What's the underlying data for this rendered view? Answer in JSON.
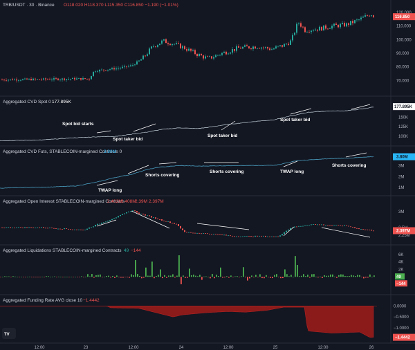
{
  "header": {
    "symbol": "TRB/USDT · 30 · Binance",
    "ohlc": "O118.020 H118.370 L115.350 C116.850 −1.190 (−1.01%)"
  },
  "x_labels": [
    "12:00",
    "23",
    "12:00",
    "24",
    "12:00",
    "25",
    "12:00",
    "26"
  ],
  "colors": {
    "up": "#26a69a",
    "down": "#ef5350",
    "line": "#4a9ec0",
    "background": "#131722",
    "funding": "#8b1a1a"
  },
  "logo": "TV",
  "chart_data": [
    {
      "type": "candlestick",
      "title": "TRB/USDT · 30 · Binance",
      "ylim": [
        62,
        122
      ],
      "y_ticks": [
        "120.000",
        "110.000",
        "100.000",
        "90.000",
        "80.000",
        "70.000"
      ],
      "last_value": "116.850",
      "keypoints": [
        [
          0,
          70.5
        ],
        [
          60,
          70.8
        ],
        [
          100,
          71.2
        ],
        [
          128,
          71.2
        ],
        [
          135,
          77
        ],
        [
          170,
          79
        ],
        [
          190,
          81
        ],
        [
          205,
          86
        ],
        [
          220,
          95
        ],
        [
          235,
          99
        ],
        [
          250,
          97
        ],
        [
          265,
          94
        ],
        [
          285,
          89
        ],
        [
          300,
          86
        ],
        [
          320,
          90
        ],
        [
          345,
          94
        ],
        [
          372,
          95
        ],
        [
          392,
          93
        ],
        [
          410,
          96
        ],
        [
          420,
          99
        ],
        [
          430,
          113
        ],
        [
          440,
          107
        ],
        [
          460,
          108
        ],
        [
          480,
          110
        ],
        [
          500,
          111
        ],
        [
          520,
          115
        ],
        [
          535,
          119
        ],
        [
          542,
          117
        ]
      ]
    },
    {
      "type": "line",
      "title": "Aggregated CVD Spot 0",
      "value": "177.895K",
      "ylim": [
        87,
        180
      ],
      "y_ticks": [
        "150K",
        "125K",
        "100K"
      ],
      "keypoints": [
        [
          0,
          88
        ],
        [
          60,
          90
        ],
        [
          100,
          95
        ],
        [
          135,
          98
        ],
        [
          170,
          100
        ],
        [
          185,
          104
        ],
        [
          210,
          110
        ],
        [
          235,
          118
        ],
        [
          260,
          122
        ],
        [
          285,
          120
        ],
        [
          300,
          123
        ],
        [
          325,
          130
        ],
        [
          350,
          135
        ],
        [
          375,
          140
        ],
        [
          395,
          143
        ],
        [
          425,
          155
        ],
        [
          445,
          163
        ],
        [
          470,
          166
        ],
        [
          500,
          167
        ],
        [
          525,
          172
        ],
        [
          540,
          177
        ]
      ],
      "annotations": [
        "Spot bid starts",
        "Spot taker bid",
        "Spot taker bid",
        "Spot taker bid"
      ]
    },
    {
      "type": "line",
      "title": "Aggregated CVD Futs, STABLECOIN-margined Contracts 0",
      "value": "3.80M",
      "ylim": [
        0.7,
        3.9
      ],
      "y_ticks": [
        "3M",
        "2M",
        "1M"
      ],
      "keypoints": [
        [
          0,
          0.95
        ],
        [
          70,
          1.05
        ],
        [
          110,
          1.15
        ],
        [
          140,
          1.5
        ],
        [
          165,
          1.9
        ],
        [
          190,
          2.2
        ],
        [
          210,
          2.6
        ],
        [
          230,
          2.85
        ],
        [
          260,
          3.0
        ],
        [
          285,
          2.95
        ],
        [
          340,
          3.0
        ],
        [
          380,
          3.0
        ],
        [
          400,
          3.05
        ],
        [
          430,
          3.45
        ],
        [
          470,
          3.6
        ],
        [
          510,
          3.7
        ],
        [
          540,
          3.8
        ]
      ],
      "annotations": [
        "TWAP long",
        "Shorts covering",
        "Shorts covering",
        "TWAP long",
        "Shorts covering"
      ]
    },
    {
      "type": "line",
      "title": "Aggregated Open Interest STABLECOIN-margined Contracts",
      "value": "2.397M",
      "ohlc": [
        "2.402M",
        "2.408M",
        "2.39M",
        "2.397M"
      ],
      "ylim": [
        2.1,
        3.2
      ],
      "y_ticks": [
        "3M",
        "2.5M",
        "2.25M"
      ],
      "keypoints": [
        [
          0,
          2.5
        ],
        [
          60,
          2.5
        ],
        [
          120,
          2.42
        ],
        [
          140,
          2.6
        ],
        [
          170,
          2.85
        ],
        [
          190,
          3.05
        ],
        [
          200,
          2.95
        ],
        [
          230,
          2.75
        ],
        [
          255,
          2.6
        ],
        [
          265,
          2.35
        ],
        [
          300,
          2.3
        ],
        [
          340,
          2.22
        ],
        [
          380,
          2.22
        ],
        [
          400,
          2.2
        ],
        [
          420,
          2.5
        ],
        [
          450,
          2.6
        ],
        [
          470,
          2.58
        ],
        [
          500,
          2.55
        ],
        [
          520,
          2.45
        ],
        [
          540,
          2.4
        ]
      ]
    },
    {
      "type": "bar",
      "title": "Aggregated Liquidations STABLECOIN-margined Contracts",
      "values_label": [
        "49",
        "−144"
      ],
      "ylim": [
        -3.5,
        6
      ],
      "y_ticks": [
        "6K",
        "4K",
        "2K",
        "0",
        "−2K"
      ],
      "spikes": [
        [
          195,
          4.5
        ],
        [
          210,
          2.5
        ],
        [
          218,
          4.1
        ],
        [
          230,
          2.0
        ],
        [
          258,
          5.8
        ],
        [
          262,
          -2.0
        ],
        [
          272,
          2.2
        ],
        [
          290,
          -0.8
        ],
        [
          318,
          2.5
        ],
        [
          352,
          2.6
        ],
        [
          357,
          -1.0
        ],
        [
          410,
          2.0
        ],
        [
          425,
          5.6
        ],
        [
          430,
          3.2
        ]
      ]
    },
    {
      "type": "area",
      "title": "Aggregated Funding Rate AVG close 10",
      "value": "−1.4442",
      "ylim": [
        -1.52,
        0.08
      ],
      "y_ticks": [
        "0.0000",
        "−0.5000",
        "−1.0000"
      ],
      "keypoints": [
        [
          0,
          0
        ],
        [
          155,
          0
        ],
        [
          160,
          -0.08
        ],
        [
          200,
          -0.1
        ],
        [
          225,
          -0.3
        ],
        [
          250,
          -0.5
        ],
        [
          265,
          -0.4
        ],
        [
          300,
          -0.3
        ],
        [
          330,
          -0.25
        ],
        [
          355,
          -0.28
        ],
        [
          385,
          -0.2
        ],
        [
          410,
          -0.05
        ],
        [
          440,
          -0.05
        ],
        [
          445,
          -1.15
        ],
        [
          480,
          -1.25
        ],
        [
          520,
          -1.2
        ],
        [
          535,
          -1.45
        ],
        [
          540,
          -1.44
        ]
      ]
    }
  ],
  "annotations_text": {
    "cvd_spot": [
      "Spot bid starts",
      "Spot taker bid",
      "Spot taker bid",
      "Spot taker bid"
    ],
    "cvd_futs": [
      "TWAP long",
      "Shorts covering",
      "Shorts covering",
      "TWAP long",
      "Shorts covering"
    ]
  }
}
